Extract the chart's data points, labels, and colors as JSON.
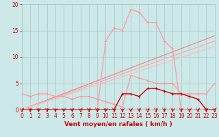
{
  "bg_color": "#cce8e8",
  "grid_color": "#aacccc",
  "xlabel": "Vent moyen/en rafales ( km/h )",
  "xlim": [
    0,
    23
  ],
  "ylim": [
    0,
    20
  ],
  "xticks": [
    0,
    1,
    2,
    3,
    4,
    5,
    6,
    7,
    8,
    9,
    10,
    11,
    12,
    13,
    14,
    15,
    16,
    17,
    18,
    19,
    20,
    21,
    22,
    23
  ],
  "yticks": [
    0,
    5,
    10,
    15,
    20
  ],
  "series": [
    {
      "name": "zero_line_red",
      "x": [
        0,
        1,
        2,
        3,
        4,
        5,
        6,
        7,
        8,
        9,
        10,
        11,
        12,
        13,
        14,
        15,
        16,
        17,
        18,
        19,
        20,
        21,
        22,
        23
      ],
      "y": [
        0,
        0,
        0,
        0,
        0,
        0,
        0,
        0,
        0,
        0,
        0,
        0,
        0,
        0,
        0,
        0,
        0,
        0,
        0,
        0,
        0,
        0,
        0,
        0
      ],
      "color": "#ee4444",
      "lw": 0.8,
      "marker": "+",
      "ms": 3.5,
      "mew": 0.7,
      "zorder": 3
    },
    {
      "name": "diagonal_top",
      "x": [
        0,
        23
      ],
      "y": [
        0,
        14
      ],
      "color": "#ee8888",
      "lw": 0.9,
      "marker": null,
      "ms": 0,
      "mew": 0,
      "zorder": 2
    },
    {
      "name": "diagonal_mid",
      "x": [
        0,
        23
      ],
      "y": [
        0,
        13
      ],
      "color": "#ffaaaa",
      "lw": 0.9,
      "marker": null,
      "ms": 0,
      "mew": 0,
      "zorder": 2
    },
    {
      "name": "diagonal_low",
      "x": [
        0,
        23
      ],
      "y": [
        0,
        12
      ],
      "color": "#ffbbbb",
      "lw": 0.9,
      "marker": null,
      "ms": 0,
      "mew": 0,
      "zorder": 2
    },
    {
      "name": "light_wavy",
      "x": [
        0,
        1,
        2,
        3,
        4,
        5,
        6,
        7,
        8,
        9,
        10,
        11,
        12,
        13,
        14,
        15,
        16,
        17,
        18,
        19,
        20,
        21,
        22,
        23
      ],
      "y": [
        3,
        2.5,
        3,
        3,
        2.5,
        2.5,
        2,
        2.5,
        2.5,
        2,
        1.5,
        1,
        0.5,
        6.5,
        6,
        5.5,
        5,
        5,
        5,
        3,
        3,
        3,
        3,
        5
      ],
      "color": "#ff9999",
      "lw": 0.9,
      "marker": "+",
      "ms": 3,
      "mew": 0.7,
      "zorder": 3
    },
    {
      "name": "peaked_light",
      "x": [
        0,
        1,
        2,
        3,
        4,
        5,
        6,
        7,
        8,
        9,
        10,
        11,
        12,
        13,
        14,
        15,
        16,
        17,
        18,
        19,
        20,
        21,
        22,
        23
      ],
      "y": [
        0,
        0,
        0,
        0,
        0,
        0,
        0,
        0,
        0,
        0,
        13,
        15.5,
        15,
        19,
        18.5,
        16.5,
        16.5,
        13,
        11.5,
        0,
        0,
        0,
        0,
        0
      ],
      "color": "#ff9999",
      "lw": 0.9,
      "marker": "+",
      "ms": 3,
      "mew": 0.7,
      "zorder": 3
    },
    {
      "name": "dark_line",
      "x": [
        0,
        1,
        2,
        3,
        4,
        5,
        6,
        7,
        8,
        9,
        10,
        11,
        12,
        13,
        14,
        15,
        16,
        17,
        18,
        19,
        20,
        21,
        22,
        23
      ],
      "y": [
        0,
        0,
        0,
        0,
        0,
        0,
        0,
        0,
        0,
        0,
        0,
        0,
        3,
        3,
        2.5,
        4,
        4,
        3.5,
        3,
        3,
        2.5,
        2,
        0,
        0
      ],
      "color": "#cc0000",
      "lw": 1.0,
      "marker": "+",
      "ms": 3.5,
      "mew": 0.8,
      "zorder": 4
    },
    {
      "name": "dark_zero",
      "x": [
        0,
        1,
        2,
        3,
        4,
        5,
        6,
        7,
        8,
        9,
        10,
        11,
        12,
        13,
        14,
        15,
        16,
        17,
        18,
        19,
        20,
        21,
        22,
        23
      ],
      "y": [
        0,
        0,
        0,
        0,
        0,
        0,
        0,
        0,
        0,
        0,
        0,
        0,
        0,
        0,
        0,
        0,
        0,
        0,
        0,
        0,
        0,
        0,
        0,
        0
      ],
      "color": "#cc0000",
      "lw": 0.8,
      "marker": "+",
      "ms": 3,
      "mew": 0.7,
      "zorder": 4
    }
  ],
  "tick_color": "#cc0000",
  "axis_label_color": "#cc0000",
  "label_fontsize": 6.5,
  "tick_fontsize": 5.5
}
